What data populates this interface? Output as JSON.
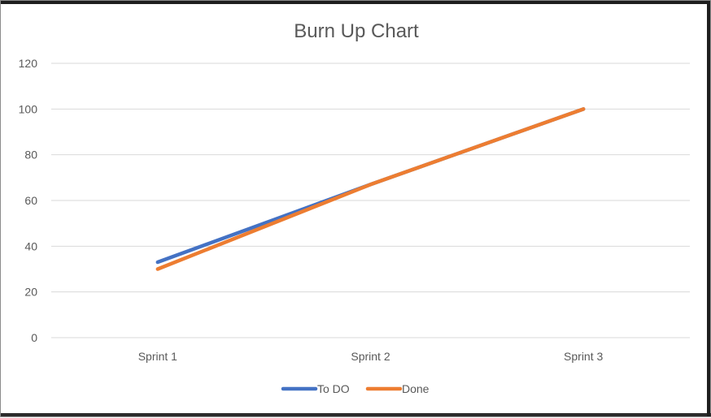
{
  "chart_data": {
    "type": "line",
    "title": "Burn Up Chart",
    "categories": [
      "Sprint 1",
      "Sprint 2",
      "Sprint 3"
    ],
    "series": [
      {
        "name": "To DO",
        "values": [
          33,
          67,
          100
        ],
        "color": "#4472c4"
      },
      {
        "name": "Done",
        "values": [
          30,
          67,
          100
        ],
        "color": "#ed7d31"
      }
    ],
    "ylim": [
      0,
      120
    ],
    "yticks": [
      0,
      20,
      40,
      60,
      80,
      100,
      120
    ],
    "grid": true,
    "legend": "bottom"
  }
}
